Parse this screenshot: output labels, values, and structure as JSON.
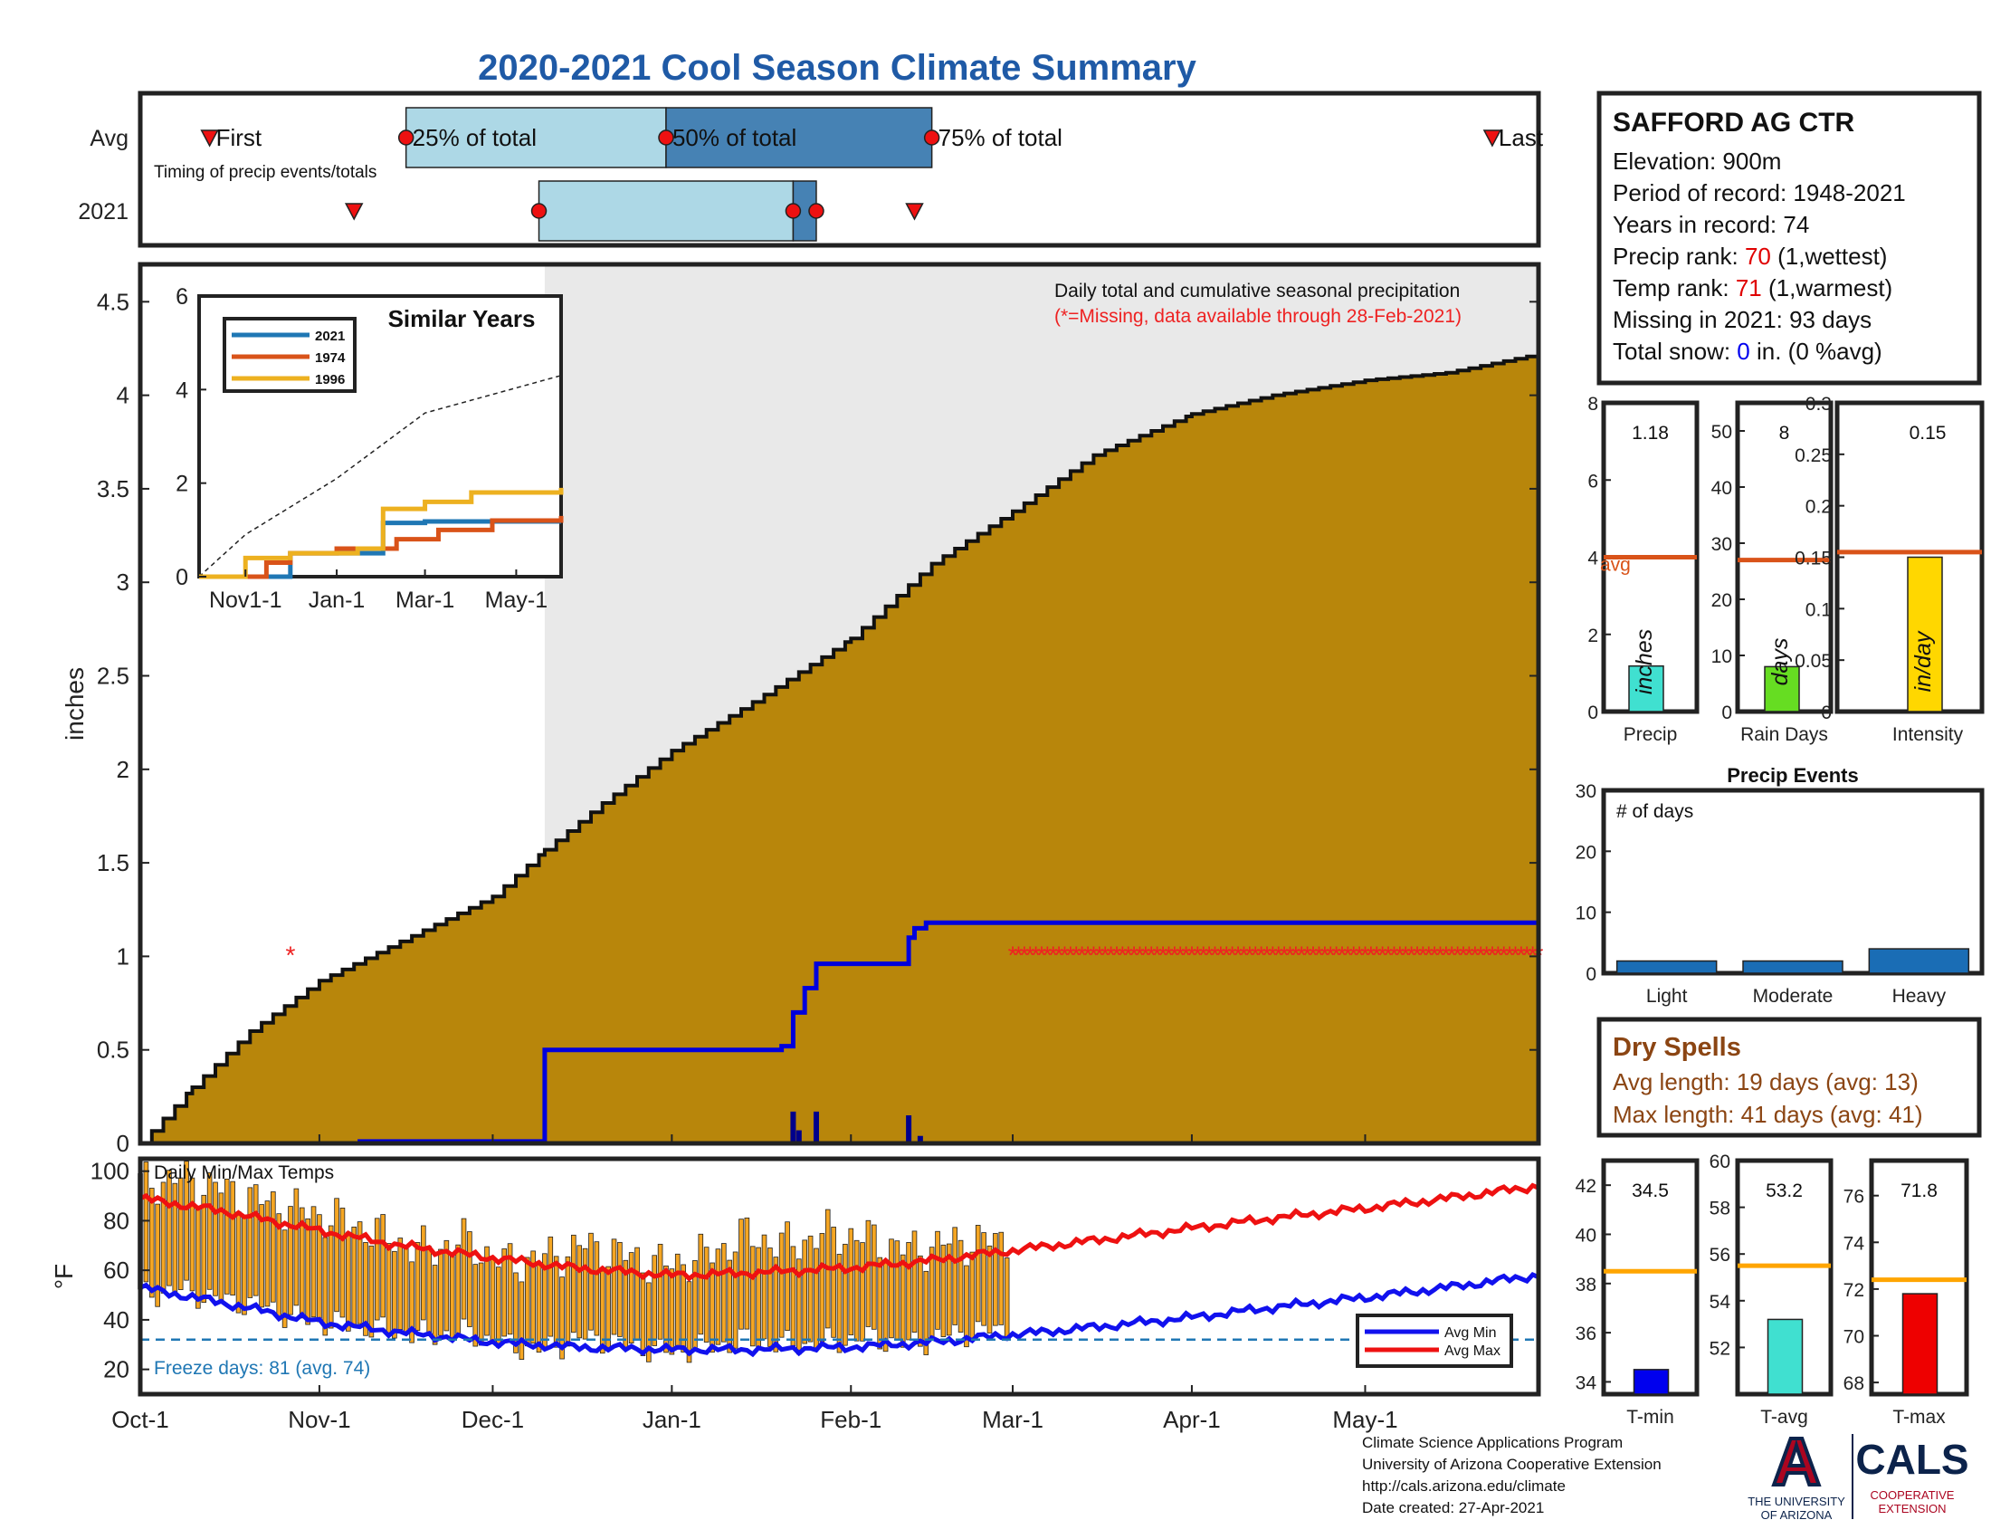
{
  "title": "2020-2021 Cool Season Climate Summary",
  "station_box": {
    "name": "SAFFORD AG CTR",
    "elevation": "Elevation: 900m",
    "period": "Period of record: 1948-2021",
    "years": "Years in record: 74",
    "precip_rank_label": "Precip rank: ",
    "precip_rank_value": "70",
    "precip_rank_note": " (1,wettest)",
    "temp_rank_label": "Temp rank: ",
    "temp_rank_value": "71",
    "temp_rank_note": " (1,warmest)",
    "missing": "Missing in 2021: 93 days",
    "snow_label": "Total snow: ",
    "snow_value": "0",
    "snow_note": " in. (0 %avg)"
  },
  "colors": {
    "title": "#1f5aa6",
    "cumulative_fill": "#b8860b",
    "season_2021": "#0000dd",
    "avg_max": "#ee1111",
    "avg_min": "#1111ee",
    "temp_bars": "#f5a623",
    "light_box": "#add8e6",
    "dark_box": "#4682b4",
    "missing": "#ee2222",
    "dry_spells": "#8b4513"
  },
  "chart_data": [
    {
      "id": "timing",
      "type": "timeline",
      "row_labels": [
        "Avg",
        "2021"
      ],
      "note": "Timing of precip events/totals",
      "avg": {
        "first": "2020-10-13",
        "p25": "2020-11-16",
        "p50": "2020-12-31",
        "p75": "2021-02-15",
        "last": "2021-05-23"
      },
      "season_2021": {
        "first": "2020-11-07",
        "p25": "2020-12-09",
        "p50": "2021-01-22",
        "p75": "2021-01-26",
        "last": "2021-02-12"
      },
      "point_labels": [
        "First",
        "25% of total",
        "50% of total",
        "75% of total",
        "Last"
      ]
    },
    {
      "id": "cumulative_precip",
      "type": "area",
      "ylabel": "inches",
      "ylim": [
        0,
        4.7
      ],
      "yticks": [
        0,
        0.5,
        1,
        1.5,
        2,
        2.5,
        3,
        3.5,
        4,
        4.5
      ],
      "xlim": [
        "2020-10-01",
        "2021-05-31"
      ],
      "xticks": [
        "Oct-1",
        "Nov-1",
        "Dec-1",
        "Jan-1",
        "Feb-1",
        "Mar-1",
        "Apr-1",
        "May-1"
      ],
      "annotation": "Daily total and cumulative seasonal precipitation",
      "missing_note": "(*=Missing, data available through 28-Feb-2021)",
      "average_cumulative": {
        "name": "Average",
        "x": [
          "2020-10-01",
          "2020-10-10",
          "2020-10-20",
          "2020-11-01",
          "2020-11-15",
          "2020-12-01",
          "2020-12-10",
          "2020-12-20",
          "2021-01-01",
          "2021-01-15",
          "2021-02-01",
          "2021-02-15",
          "2021-03-01",
          "2021-03-15",
          "2021-04-01",
          "2021-04-15",
          "2021-05-01",
          "2021-05-15",
          "2021-05-31"
        ],
        "y": [
          0,
          0.3,
          0.6,
          0.87,
          1.08,
          1.32,
          1.57,
          1.82,
          2.1,
          2.36,
          2.7,
          3.1,
          3.38,
          3.68,
          3.9,
          4.0,
          4.08,
          4.12,
          4.22
        ]
      },
      "season_2021_cumulative": {
        "name": "2021",
        "x": [
          "2020-10-01",
          "2020-11-08",
          "2020-12-09",
          "2020-12-10",
          "2021-01-20",
          "2021-01-22",
          "2021-01-24",
          "2021-01-26",
          "2021-02-11",
          "2021-02-12",
          "2021-02-14",
          "2021-05-31"
        ],
        "y": [
          0,
          0.01,
          0.01,
          0.5,
          0.52,
          0.7,
          0.83,
          0.96,
          1.1,
          1.15,
          1.18,
          1.18
        ]
      },
      "daily_2021": {
        "x": [
          "2021-01-22",
          "2021-01-23",
          "2021-01-26",
          "2021-02-11",
          "2021-02-13"
        ],
        "y": [
          0.17,
          0.07,
          0.17,
          0.15,
          0.04
        ]
      },
      "missing_dates": [
        "2020-10-27",
        "2021-03-01/2021-05-31"
      ]
    },
    {
      "id": "similar_years",
      "type": "line",
      "title": "Similar Years",
      "ylim": [
        0,
        6
      ],
      "yticks": [
        0,
        2,
        4,
        6
      ],
      "xticks": [
        "Nov1-1",
        "Jan-1",
        "Mar-1",
        "May-1"
      ],
      "average": {
        "x": [
          "2020-10-01",
          "2020-11-01",
          "2021-01-01",
          "2021-03-01",
          "2021-05-31"
        ],
        "y": [
          0,
          0.9,
          2.1,
          3.5,
          4.3
        ]
      },
      "series": [
        {
          "name": "2021",
          "color": "#1f77b4",
          "x": [
            "2020-10-01",
            "2020-11-20",
            "2020-12-01",
            "2021-01-20",
            "2021-02-01",
            "2021-03-01",
            "2021-05-31"
          ],
          "y": [
            0,
            0,
            0.5,
            0.5,
            1.15,
            1.18,
            1.18
          ]
        },
        {
          "name": "1974",
          "color": "#d95319",
          "x": [
            "2020-10-01",
            "2020-11-15",
            "2020-12-01",
            "2021-01-01",
            "2021-02-10",
            "2021-03-10",
            "2021-04-15",
            "2021-05-31"
          ],
          "y": [
            0,
            0.3,
            0.5,
            0.6,
            0.8,
            1.0,
            1.2,
            1.3
          ]
        },
        {
          "name": "1996",
          "color": "#edb120",
          "x": [
            "2020-10-01",
            "2020-11-01",
            "2020-12-01",
            "2021-01-15",
            "2021-02-01",
            "2021-03-01",
            "2021-04-01",
            "2021-05-31"
          ],
          "y": [
            0,
            0.4,
            0.5,
            0.6,
            1.45,
            1.6,
            1.8,
            1.9
          ]
        }
      ]
    },
    {
      "id": "precip_total",
      "type": "bar",
      "categories": [
        "Precip"
      ],
      "values": [
        1.18
      ],
      "value_label": "1.18",
      "avg": 4.0,
      "avg_label": "avg",
      "unit_label": "inches",
      "ylim": [
        0,
        8
      ],
      "yticks": [
        0,
        2,
        4,
        6,
        8
      ],
      "color": "#40e0d0"
    },
    {
      "id": "rain_days",
      "type": "bar",
      "categories": [
        "Rain Days"
      ],
      "values": [
        8
      ],
      "value_label": "8",
      "avg": 27,
      "unit_label": "days",
      "ylim": [
        0,
        55
      ],
      "yticks": [
        0,
        10,
        20,
        30,
        40,
        50
      ],
      "color": "#66dd22"
    },
    {
      "id": "intensity",
      "type": "bar",
      "categories": [
        "Intensity"
      ],
      "values": [
        0.15
      ],
      "value_label": "0.15",
      "avg": 0.155,
      "unit_label": "in/day",
      "ylim": [
        0,
        0.3
      ],
      "yticks": [
        "0",
        "0.05",
        "0.1",
        "0.15",
        "0.2",
        "0.25",
        "0.3"
      ],
      "color": "#ffd700"
    },
    {
      "id": "precip_events",
      "type": "bar",
      "title": "Precip Events",
      "ylabel_inside": "# of days",
      "categories": [
        "Light",
        "Moderate",
        "Heavy"
      ],
      "values": [
        2,
        2,
        4
      ],
      "ylim": [
        0,
        30
      ],
      "yticks": [
        0,
        10,
        20,
        30
      ],
      "color": "#1a6db5"
    },
    {
      "id": "temps",
      "type": "bar",
      "ylabel": "°F",
      "ylim": [
        10,
        105
      ],
      "yticks": [
        20,
        40,
        60,
        80,
        100
      ],
      "title": "Daily Min/Max Temps",
      "freeze_note": "Freeze days: 81 (avg. 74)",
      "freeze_line": 32,
      "legend": [
        "Avg Min",
        "Avg Max"
      ],
      "legend_position": "bottom-right",
      "avg_max": {
        "x": [
          "2020-10-01",
          "2020-10-15",
          "2020-11-01",
          "2020-11-15",
          "2020-12-01",
          "2020-12-15",
          "2021-01-01",
          "2021-01-15",
          "2021-02-01",
          "2021-02-15",
          "2021-03-01",
          "2021-03-15",
          "2021-04-01",
          "2021-04-15",
          "2021-05-01",
          "2021-05-15",
          "2021-05-31"
        ],
        "y": [
          89,
          84,
          76,
          70,
          65,
          61,
          58,
          59,
          61,
          64,
          68,
          72,
          77,
          81,
          85,
          89,
          94
        ]
      },
      "avg_min": {
        "x": [
          "2020-10-01",
          "2020-10-15",
          "2020-11-01",
          "2020-11-15",
          "2020-12-01",
          "2020-12-15",
          "2021-01-01",
          "2021-01-15",
          "2021-02-01",
          "2021-02-15",
          "2021-03-01",
          "2021-03-15",
          "2021-04-01",
          "2021-04-15",
          "2021-05-01",
          "2021-05-15",
          "2021-05-31"
        ],
        "y": [
          53,
          47,
          39,
          35,
          31,
          29,
          28,
          28,
          29,
          31,
          34,
          37,
          41,
          45,
          49,
          53,
          58
        ]
      },
      "daily_range_2021": {
        "x": [
          "2020-10-01",
          "2020-10-08",
          "2020-10-15",
          "2020-10-22",
          "2020-10-29",
          "2020-11-05",
          "2020-11-12",
          "2020-11-19",
          "2020-11-26",
          "2020-12-03",
          "2020-12-10",
          "2020-12-17",
          "2020-12-24",
          "2020-12-31",
          "2021-01-07",
          "2021-01-14",
          "2021-01-21",
          "2021-01-28",
          "2021-02-04",
          "2021-02-11",
          "2021-02-18",
          "2021-02-25"
        ],
        "min": [
          50,
          52,
          48,
          46,
          40,
          38,
          36,
          34,
          35,
          30,
          28,
          33,
          30,
          27,
          29,
          32,
          30,
          31,
          33,
          30,
          34,
          36
        ],
        "max": [
          95,
          97,
          93,
          88,
          84,
          80,
          74,
          68,
          72,
          63,
          65,
          70,
          66,
          62,
          66,
          74,
          70,
          75,
          73,
          68,
          71,
          72
        ]
      }
    },
    {
      "id": "temp_summary",
      "type": "bar",
      "panels": [
        {
          "category": "T-min",
          "value": 34.5,
          "value_label": "34.5",
          "avg": 38.5,
          "ylim": [
            33.5,
            43
          ],
          "yticks": [
            34,
            36,
            38,
            40,
            42
          ],
          "color": "#0000ee"
        },
        {
          "category": "T-avg",
          "value": 53.2,
          "value_label": "53.2",
          "avg": 55.5,
          "ylim": [
            50,
            60
          ],
          "yticks": [
            52,
            54,
            56,
            58,
            60
          ],
          "color": "#40e0d0"
        },
        {
          "category": "T-max",
          "value": 71.8,
          "value_label": "71.8",
          "avg": 72.4,
          "ylim": [
            67.5,
            77.5
          ],
          "yticks": [
            68,
            70,
            72,
            74,
            76
          ],
          "color": "#ee0000"
        }
      ]
    }
  ],
  "dry_spells": {
    "title": "Dry Spells",
    "avg_length": "Avg length: 19 days (avg: 13)",
    "max_length": "Max length: 41 days (avg: 41)"
  },
  "footer": {
    "line1": "Climate Science Applications Program",
    "line2": "University of Arizona Cooperative Extension",
    "line3": "http://cals.arizona.edu/climate",
    "line4": " Date created: 27-Apr-2021"
  },
  "logo": {
    "letter": "A",
    "university_line1": "THE UNIVERSITY",
    "university_line2": "OF ARIZONA",
    "cals": "CALS",
    "cals_sub1": "COOPERATIVE",
    "cals_sub2": "EXTENSION"
  }
}
